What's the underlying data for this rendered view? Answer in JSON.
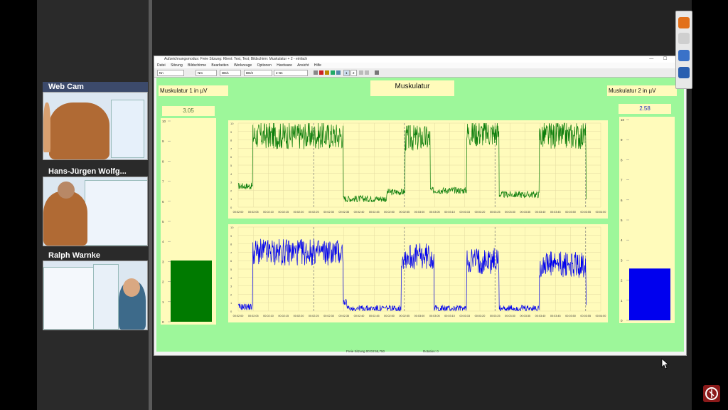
{
  "participants": [
    {
      "name": "Web Cam"
    },
    {
      "name": "Hans-Jürgen Wolfg..."
    },
    {
      "name": "Ralph Warnke"
    }
  ],
  "app": {
    "window_title": "Aufzeichnungsmodus: Freie Sitzung: Klient: Test, Test; Bildschirm: Muskulatur + 2 - einfach",
    "menu": [
      "Datei",
      "Sitzung",
      "Bildschirme",
      "Bearbeiten",
      "Werkzeuge",
      "Optionen",
      "Hardware",
      "Ansicht",
      "Hilfe"
    ],
    "toolbar": {
      "selects": [
        "Nn",
        "Nm",
        "DE/1",
        "DE/2",
        "2 Nn"
      ],
      "pages": [
        "1",
        "2"
      ]
    },
    "screen_title": "Muskulatur",
    "channel1": {
      "label": "Muskulatur 1 in µV",
      "value": "3.05",
      "level": 3.05,
      "color": "#007a00"
    },
    "channel2": {
      "label": "Muskulatur 2 in µV",
      "value": "2.58",
      "level": 2.58,
      "color": "#0000ee"
    },
    "gauge_ticks": [
      "10",
      "9",
      "8",
      "7",
      "6",
      "5",
      "4",
      "3",
      "2",
      "1",
      "0"
    ],
    "time_ticks": [
      "00:02:00",
      "00:02:05",
      "00:02:10",
      "00:02:15",
      "00:02:20",
      "00:02:25",
      "00:02:30",
      "00:02:35",
      "00:02:40",
      "00:02:45",
      "00:02:50",
      "00:02:55",
      "00:03:00",
      "00:03:05",
      "00:03:10",
      "00:03:15",
      "00:03:20",
      "00:03:25",
      "00:03:30",
      "00:03:35",
      "00:03:40",
      "00:03:45",
      "00:03:50",
      "00:03:55",
      "00:04:00"
    ],
    "status_left": "Freie Sitzung 00:03:55,750",
    "status_right": "Rotation: 0"
  },
  "chart_data": [
    {
      "type": "line",
      "series": [
        {
          "color": "#0b7d0b"
        }
      ],
      "xlabel": "",
      "ylabel": "",
      "x_ticks": [
        "00:02:00",
        "00:02:05",
        "00:02:10",
        "00:02:15",
        "00:02:20",
        "00:02:25",
        "00:02:30",
        "00:02:35",
        "00:02:40",
        "00:02:45",
        "00:02:50",
        "00:02:55",
        "00:03:00",
        "00:03:05",
        "00:03:10",
        "00:03:15",
        "00:03:20",
        "00:03:25",
        "00:03:30",
        "00:03:35",
        "00:03:40",
        "00:03:45",
        "00:03:50",
        "00:03:55",
        "00:04:00"
      ],
      "bursts": [
        [
          0.0,
          0.05,
          2.5
        ],
        [
          0.04,
          0.29,
          8.5
        ],
        [
          0.31,
          0.39,
          1.0
        ],
        [
          0.41,
          0.46,
          1.8
        ],
        [
          0.46,
          0.53,
          8.2
        ],
        [
          0.53,
          0.63,
          2.0
        ],
        [
          0.63,
          0.72,
          8.8
        ],
        [
          0.72,
          0.83,
          1.5
        ],
        [
          0.83,
          0.96,
          8.5
        ]
      ],
      "grid": true
    },
    {
      "type": "line",
      "series": [
        {
          "color": "#0000ee"
        }
      ],
      "xlabel": "",
      "ylabel": "",
      "x_ticks": [
        "00:02:00",
        "00:02:05",
        "00:02:10",
        "00:02:15",
        "00:02:20",
        "00:02:25",
        "00:02:30",
        "00:02:35",
        "00:02:40",
        "00:02:45",
        "00:02:50",
        "00:02:55",
        "00:03:00",
        "00:03:05",
        "00:03:10",
        "00:03:15",
        "00:03:20",
        "00:03:25",
        "00:03:30",
        "00:03:35",
        "00:03:40",
        "00:03:45",
        "00:03:50",
        "00:03:55",
        "00:04:00"
      ],
      "bursts": [
        [
          0.0,
          0.04,
          0.5
        ],
        [
          0.04,
          0.29,
          7.0
        ],
        [
          0.3,
          0.45,
          0.3
        ],
        [
          0.45,
          0.54,
          6.5
        ],
        [
          0.54,
          0.63,
          0.3
        ],
        [
          0.63,
          0.72,
          6.0
        ],
        [
          0.72,
          0.83,
          0.3
        ],
        [
          0.83,
          0.96,
          5.5
        ]
      ],
      "grid": true
    }
  ]
}
